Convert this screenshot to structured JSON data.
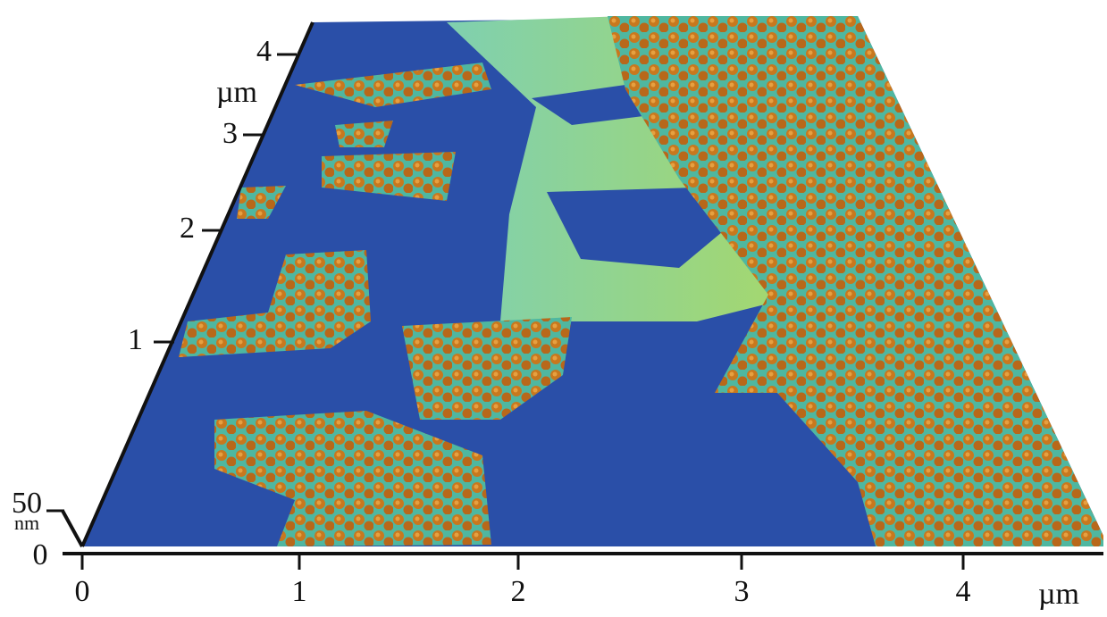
{
  "x_axis": {
    "ticks": [
      0,
      1,
      2,
      3,
      4
    ],
    "unit": "µm"
  },
  "y_axis": {
    "ticks": [
      1,
      2,
      3,
      4
    ],
    "unit": "µm"
  },
  "z_axis": {
    "ticks": [
      0,
      50
    ],
    "unit": "nm"
  }
}
